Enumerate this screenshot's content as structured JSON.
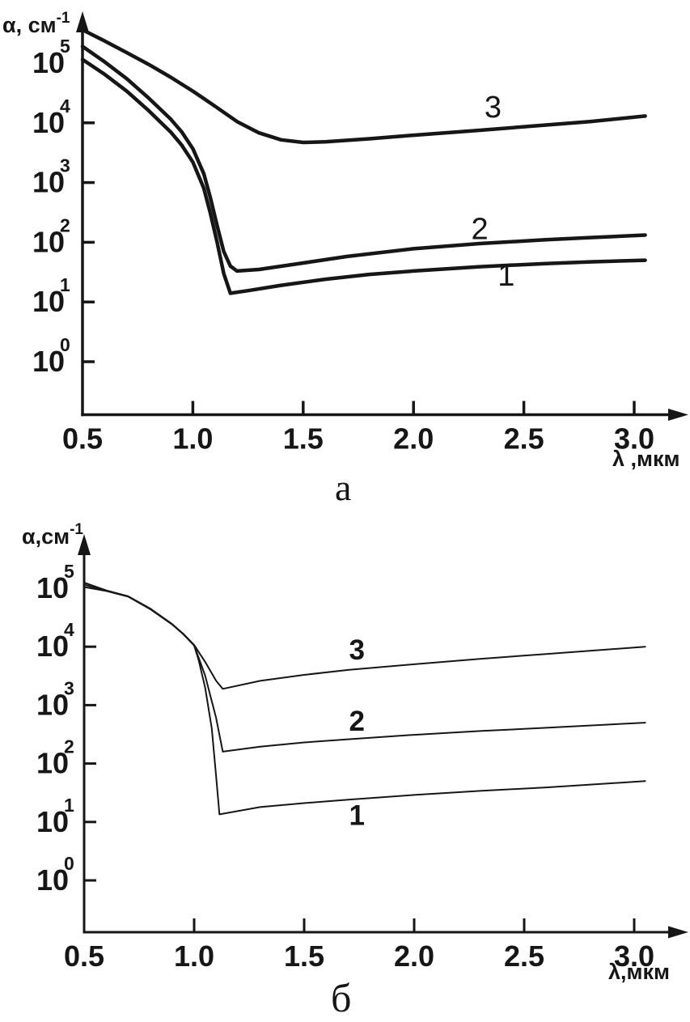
{
  "page": {
    "background": "#ffffff",
    "ink": "#161616"
  },
  "chart_data": [
    {
      "id": "a",
      "type": "line",
      "panel_label": "а",
      "ylabel_main": "α, см",
      "ylabel_sup": "-1",
      "xlabel": "λ ,мкм",
      "x_axis": {
        "origin_label": "0.5",
        "ticks": [
          1.0,
          1.5,
          2.0,
          2.5,
          3.0
        ],
        "tick_labels": [
          "1.0",
          "1.5",
          "2.0",
          "2.5",
          "3.0"
        ],
        "range": [
          0.5,
          3.2
        ]
      },
      "y_axis": {
        "scale": "log",
        "base": "10",
        "tick_exponents": [
          0,
          1,
          2,
          3,
          4,
          5
        ],
        "tick_mark_exponents": [
          0,
          1,
          2,
          3,
          4
        ],
        "range": [
          1,
          100000
        ]
      },
      "series": [
        {
          "name": "1",
          "points": [
            [
              0.5,
              115000
            ],
            [
              0.6,
              65000
            ],
            [
              0.7,
              34000
            ],
            [
              0.8,
              16000
            ],
            [
              0.9,
              7000
            ],
            [
              0.95,
              4200
            ],
            [
              1.0,
              2200
            ],
            [
              1.05,
              800
            ],
            [
              1.08,
              300
            ],
            [
              1.11,
              100
            ],
            [
              1.14,
              30
            ],
            [
              1.17,
              14
            ],
            [
              1.25,
              15.5
            ],
            [
              1.4,
              19
            ],
            [
              1.6,
              24
            ],
            [
              1.8,
              29
            ],
            [
              2.0,
              33
            ],
            [
              2.3,
              39
            ],
            [
              2.6,
              44
            ],
            [
              2.8,
              47
            ],
            [
              3.05,
              50
            ]
          ]
        },
        {
          "name": "2",
          "points": [
            [
              0.5,
              190000
            ],
            [
              0.6,
              105000
            ],
            [
              0.7,
              55000
            ],
            [
              0.8,
              26000
            ],
            [
              0.9,
              11500
            ],
            [
              0.95,
              7000
            ],
            [
              1.0,
              3700
            ],
            [
              1.05,
              1400
            ],
            [
              1.08,
              550
            ],
            [
              1.11,
              190
            ],
            [
              1.14,
              70
            ],
            [
              1.17,
              40
            ],
            [
              1.2,
              33
            ],
            [
              1.3,
              35
            ],
            [
              1.5,
              45
            ],
            [
              1.7,
              58
            ],
            [
              2.0,
              78
            ],
            [
              2.3,
              95
            ],
            [
              2.6,
              110
            ],
            [
              2.8,
              120
            ],
            [
              3.05,
              132
            ]
          ]
        },
        {
          "name": "3",
          "points": [
            [
              0.5,
              360000
            ],
            [
              0.6,
              235000
            ],
            [
              0.7,
              150000
            ],
            [
              0.8,
              95000
            ],
            [
              0.9,
              58000
            ],
            [
              1.0,
              34000
            ],
            [
              1.1,
              19000
            ],
            [
              1.2,
              10500
            ],
            [
              1.3,
              6800
            ],
            [
              1.4,
              5200
            ],
            [
              1.5,
              4700
            ],
            [
              1.6,
              4800
            ],
            [
              1.8,
              5400
            ],
            [
              2.0,
              6200
            ],
            [
              2.3,
              7500
            ],
            [
              2.6,
              9200
            ],
            [
              2.8,
              10500
            ],
            [
              3.05,
              13000
            ]
          ]
        }
      ],
      "annotations": [
        {
          "text": "3",
          "x": 2.36,
          "y": 18500
        },
        {
          "text": "2",
          "x": 2.3,
          "y": 170
        },
        {
          "text": "1",
          "x": 2.42,
          "y": 28
        }
      ]
    },
    {
      "id": "b",
      "type": "line",
      "panel_label": "б",
      "ylabel_main": "α,см",
      "ylabel_sup": "-1",
      "xlabel": "λ,мкм",
      "x_axis": {
        "origin_label": "0.5",
        "ticks": [
          1.0,
          1.5,
          2.0,
          2.5,
          3.0
        ],
        "tick_labels": [
          "1.0",
          "1.5",
          "2.0",
          "2.5",
          "3.0"
        ],
        "range": [
          0.5,
          3.2
        ]
      },
      "y_axis": {
        "scale": "log",
        "base": "10",
        "tick_exponents": [
          0,
          1,
          2,
          3,
          4,
          5
        ],
        "tick_mark_exponents": [
          0,
          1,
          2,
          3,
          4
        ],
        "range": [
          1,
          100000
        ]
      },
      "series": [
        {
          "name": "1",
          "points": [
            [
              0.5,
              105000
            ],
            [
              0.6,
              90000
            ],
            [
              0.7,
              72000
            ],
            [
              0.8,
              44000
            ],
            [
              0.9,
              24000
            ],
            [
              0.95,
              16500
            ],
            [
              1.0,
              10500
            ],
            [
              1.02,
              6000
            ],
            [
              1.05,
              2000
            ],
            [
              1.08,
              400
            ],
            [
              1.1,
              60
            ],
            [
              1.115,
              13.5
            ],
            [
              1.3,
              18
            ],
            [
              1.5,
              21
            ],
            [
              1.7,
              24
            ],
            [
              2.0,
              29
            ],
            [
              2.3,
              34
            ],
            [
              2.6,
              39
            ],
            [
              3.05,
              50
            ]
          ]
        },
        {
          "name": "2",
          "points": [
            [
              0.5,
              115000
            ],
            [
              0.6,
              91000
            ],
            [
              0.7,
              72500
            ],
            [
              0.8,
              44500
            ],
            [
              0.9,
              24200
            ],
            [
              0.95,
              16600
            ],
            [
              1.0,
              10600
            ],
            [
              1.05,
              3200
            ],
            [
              1.1,
              600
            ],
            [
              1.13,
              160
            ],
            [
              1.3,
              195
            ],
            [
              1.5,
              230
            ],
            [
              1.7,
              260
            ],
            [
              2.0,
              310
            ],
            [
              2.3,
              360
            ],
            [
              2.6,
              410
            ],
            [
              3.05,
              500
            ]
          ]
        },
        {
          "name": "3",
          "points": [
            [
              0.5,
              125000
            ],
            [
              0.6,
              92000
            ],
            [
              0.7,
              73000
            ],
            [
              0.8,
              45000
            ],
            [
              0.9,
              24400
            ],
            [
              0.95,
              16700
            ],
            [
              1.0,
              10700
            ],
            [
              1.05,
              5500
            ],
            [
              1.1,
              2600
            ],
            [
              1.13,
              1900
            ],
            [
              1.3,
              2600
            ],
            [
              1.5,
              3300
            ],
            [
              1.7,
              4000
            ],
            [
              2.0,
              5000
            ],
            [
              2.3,
              6200
            ],
            [
              2.6,
              7500
            ],
            [
              3.05,
              10000
            ]
          ]
        }
      ],
      "annotations": [
        {
          "text": "3",
          "x": 1.74,
          "y": 9200
        },
        {
          "text": "2",
          "x": 1.74,
          "y": 550
        },
        {
          "text": "1",
          "x": 1.74,
          "y": 13.5
        }
      ]
    }
  ]
}
